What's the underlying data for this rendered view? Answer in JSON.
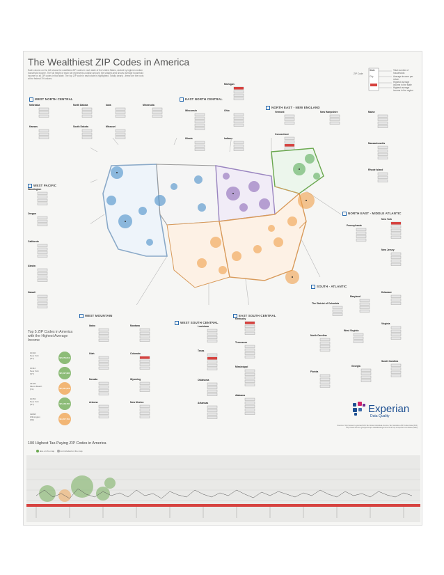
{
  "header": {
    "title": "The Wealthiest ZIP Codes in America",
    "intro": "Each column on the left shows the wealthiest ZIP codes in each state of the United States, ranked by highest median household income. The full height of each bar represents a dollar amount; the shaded area shows average household income for all ZIP codes in that state. The top ZIP code in each state is highlighted. Totally clearly - these are the roots at the federal 3% values."
  },
  "legend": {
    "state_label": "State",
    "zip_label": "ZIP Code",
    "city_label": "City",
    "items": [
      "Total number of households",
      "Average income per return",
      "Highest average income in the state",
      "Highest average income in the region"
    ]
  },
  "regions": {
    "west_north_central": "WEST NORTH CENTRAL",
    "east_north_central": "EAST NORTH CENTRAL",
    "north_east_new_england": "NORTH EAST - NEW ENGLAND",
    "west_pacific": "WEST PACIFIC",
    "north_east_middle_atlantic": "NORTH EAST - MIDDLE ATLANTIC",
    "south_atlantic": "SOUTH - ATLANTIC",
    "west_mountain": "WEST MOUNTAIN",
    "west_south_central": "WEST SOUTH CENTRAL",
    "east_south_central": "EAST SOUTH CENTRAL"
  },
  "states": {
    "wnc": [
      "Nebraska",
      "North Dakota",
      "Iowa",
      "Minnesota",
      "Kansas",
      "South Dakota",
      "Missouri"
    ],
    "enc": [
      "Michigan",
      "Wisconsin",
      "Ohio",
      "Illinois",
      "Indiana"
    ],
    "ne": [
      "Vermont",
      "New Hampshire",
      "Maine",
      "Connecticut",
      "Massachusetts",
      "Rhode Island"
    ],
    "wp": [
      "Washington",
      "Oregon",
      "California",
      "Alaska",
      "Hawaii"
    ],
    "ma": [
      "New York",
      "Pennsylvania",
      "New Jersey"
    ],
    "sa": [
      "Maryland",
      "Delaware",
      "The District of Columbia",
      "Virginia",
      "West Virginia",
      "North Carolina",
      "South Carolina",
      "Georgia",
      "Florida"
    ],
    "wm": [
      "Idaho",
      "Montana",
      "Utah",
      "Colorado",
      "Nevada",
      "Wyoming",
      "Arizona",
      "New Mexico"
    ],
    "wsc": [
      "Louisiana",
      "Texas",
      "Oklahoma",
      "Arkansas"
    ],
    "esc": [
      "Kentucky",
      "Tennessee",
      "Mississippi",
      "Alabama"
    ]
  },
  "top5": {
    "heading": "Top 5 ZIP Codes in America with the Highest Average Income",
    "items": [
      {
        "zip": "10104",
        "place": "New York",
        "state": "(NY)",
        "value": "$2,976,619",
        "color": "#6aa84f"
      },
      {
        "zip": "10112",
        "place": "New York",
        "state": "(NY)",
        "value": "$2,197,980",
        "color": "#6aa84f"
      },
      {
        "zip": "33109",
        "place": "Miami Beach",
        "state": "(FL)",
        "value": "$2,181,628",
        "color": "#f0a04b"
      },
      {
        "zip": "10153",
        "place": "New York",
        "state": "(NY)",
        "value": "$2,128,784",
        "color": "#6aa84f"
      },
      {
        "zip": "19898",
        "place": "Wilmington",
        "state": "(DE)",
        "value": "$1,357,761",
        "color": "#f0a04b"
      }
    ]
  },
  "brand": {
    "name": "Experian",
    "sub": "Data Quality"
  },
  "sources": "Sources: http://www.irs.gov/uac/SOI-Tax-Stats-Individual-Income-Tax-Statistics-ZIP-Code-Data-(SOI) http://www.census.gov/geo/maps-data/data/tiger-line.html http://experian.com/data-quality",
  "bottom": {
    "title": "100 Highest Tax-Paying ZIP Codes in America",
    "legend_on": "also on the map",
    "legend_off": "not included on the map"
  },
  "colors": {
    "wnc": "#4a8fc9",
    "enc": "#8e6bb8",
    "ne": "#5cae5c",
    "south": "#f0a04b",
    "highlight": "#d6423f"
  }
}
